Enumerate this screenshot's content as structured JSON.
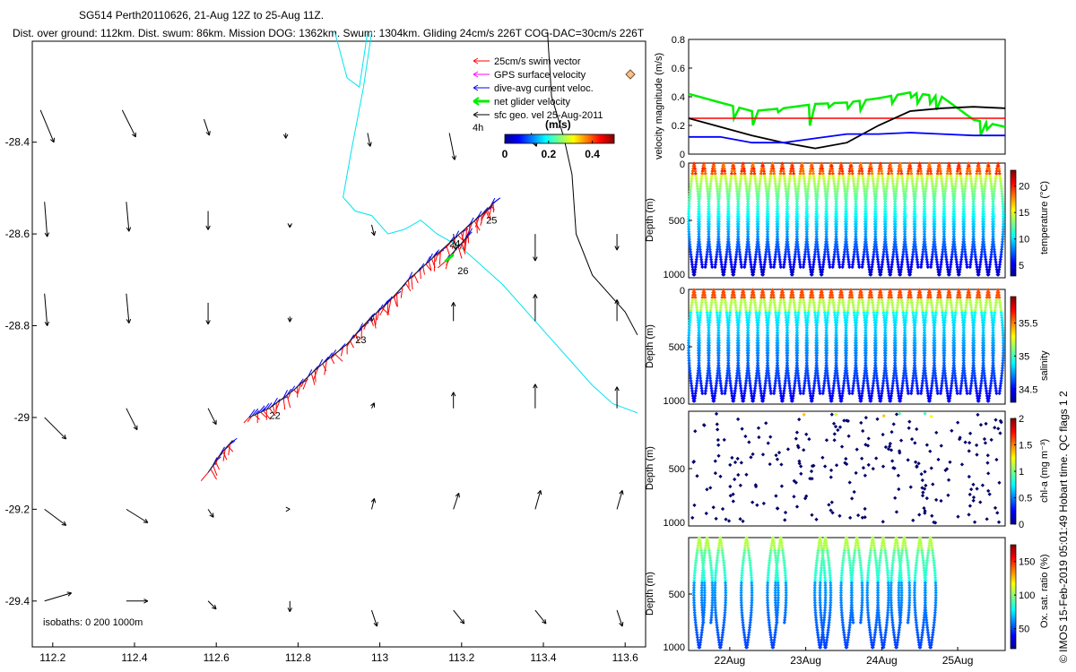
{
  "header": {
    "title": "SG514 Perth20110626, 21-Aug 12Z to 25-Aug 11Z.",
    "summary": "Dist. over ground: 112km. Dist. swum: 86km. Mission DOG: 1362km. Swum: 1304km. Gliding 24cm/s 226T COG-DAC=30cm/s 226T"
  },
  "colors": {
    "swim": "#ff0000",
    "gps": "#ff00ff",
    "dac": "#0000ff",
    "net": "#00ee00",
    "geo": "#000000",
    "isobath": "#00e5ee"
  },
  "chart_data": [
    {
      "type": "map",
      "name": "track-map",
      "xlim": [
        112.15,
        113.65
      ],
      "ylim": [
        -29.5,
        -28.18
      ],
      "xticks": [
        "112.2",
        "112.4",
        "112.6",
        "112.8",
        "113",
        "113.2",
        "113.4",
        "113.6"
      ],
      "xtick_values": [
        112.2,
        112.4,
        112.6,
        112.8,
        113.0,
        113.2,
        113.4,
        113.6
      ],
      "yticks": [
        "-28.4",
        "-28.6",
        "-28.8",
        "-29",
        "-29.2",
        "-29.4"
      ],
      "ytick_values": [
        -28.4,
        -28.6,
        -28.8,
        -29.0,
        -29.2,
        -29.4
      ],
      "legend": [
        {
          "label": "25cm/s swim vector",
          "color": "#ff0000"
        },
        {
          "label": "GPS surface velocity",
          "color": "#ff00ff"
        },
        {
          "label": "dive-avg current veloc.",
          "color": "#0000ff"
        },
        {
          "label": "net glider velocity",
          "color": "#00ee00"
        },
        {
          "label": "sfc geo. vel 25-Aug-2011",
          "color": "#000000"
        }
      ],
      "colorbar": {
        "title": "(m/s)",
        "ticks": [
          "0",
          "0.2",
          "0.4"
        ],
        "tick_values": [
          0,
          0.2,
          0.4
        ],
        "range": [
          0,
          0.5
        ]
      },
      "time_label": "4h",
      "day_labels": [
        {
          "label": "22",
          "lon": 112.73,
          "lat": -28.995
        },
        {
          "label": "23",
          "lon": 112.94,
          "lat": -28.83
        },
        {
          "label": "24",
          "lon": 113.17,
          "lat": -28.62
        },
        {
          "label": "25",
          "lon": 113.26,
          "lat": -28.57
        },
        {
          "label": "26",
          "lon": 113.19,
          "lat": -28.68
        }
      ],
      "isobath_label": "isobaths: 0   200  1000m",
      "track": [
        [
          112.58,
          -29.12
        ],
        [
          112.61,
          -29.08
        ],
        [
          112.64,
          -29.05
        ],
        [
          112.68,
          -29.0
        ],
        [
          112.73,
          -28.98
        ],
        [
          112.79,
          -28.94
        ],
        [
          112.85,
          -28.89
        ],
        [
          112.92,
          -28.84
        ],
        [
          112.97,
          -28.79
        ],
        [
          113.02,
          -28.75
        ],
        [
          113.07,
          -28.7
        ],
        [
          113.12,
          -28.66
        ],
        [
          113.17,
          -28.62
        ],
        [
          113.22,
          -28.58
        ],
        [
          113.26,
          -28.55
        ],
        [
          113.28,
          -28.53
        ]
      ],
      "short_track": [
        [
          113.16,
          -28.66
        ],
        [
          113.2,
          -28.62
        ],
        [
          113.22,
          -28.6
        ]
      ],
      "isobaths": [
        [
          [
            112.89,
            -28.16
          ],
          [
            112.92,
            -28.26
          ],
          [
            112.95,
            -28.28
          ],
          [
            112.96,
            -28.22
          ],
          [
            112.97,
            -28.16
          ]
        ],
        [
          [
            112.98,
            -28.16
          ],
          [
            112.96,
            -28.28
          ],
          [
            112.93,
            -28.42
          ],
          [
            112.91,
            -28.52
          ],
          [
            112.94,
            -28.55
          ],
          [
            112.98,
            -28.56
          ],
          [
            113.02,
            -28.6
          ],
          [
            113.06,
            -28.59
          ],
          [
            113.1,
            -28.57
          ],
          [
            113.14,
            -28.6
          ],
          [
            113.2,
            -28.63
          ],
          [
            113.25,
            -28.67
          ],
          [
            113.3,
            -28.71
          ],
          [
            113.36,
            -28.77
          ],
          [
            113.42,
            -28.83
          ],
          [
            113.47,
            -28.88
          ],
          [
            113.52,
            -28.93
          ],
          [
            113.57,
            -28.97
          ],
          [
            113.63,
            -28.99
          ]
        ]
      ],
      "contour": [
        [
          113.41,
          -28.16
        ],
        [
          113.42,
          -28.3
        ],
        [
          113.45,
          -28.39
        ],
        [
          113.47,
          -28.47
        ],
        [
          113.48,
          -28.6
        ],
        [
          113.52,
          -28.69
        ],
        [
          113.57,
          -28.74
        ],
        [
          113.6,
          -28.77
        ],
        [
          113.63,
          -28.82
        ]
      ],
      "geo_vectors": [
        {
          "lon": 112.17,
          "lat": -28.33,
          "u": 0.05,
          "v": -0.12
        },
        {
          "lon": 112.37,
          "lat": -28.33,
          "u": 0.05,
          "v": -0.1
        },
        {
          "lon": 112.57,
          "lat": -28.35,
          "u": 0.02,
          "v": -0.06
        },
        {
          "lon": 112.77,
          "lat": -28.38,
          "u": 0.0,
          "v": -0.02
        },
        {
          "lon": 112.97,
          "lat": -28.38,
          "u": 0.01,
          "v": -0.05
        },
        {
          "lon": 113.17,
          "lat": -28.38,
          "u": 0.02,
          "v": -0.1
        },
        {
          "lon": 113.37,
          "lat": -28.38,
          "u": 0.02,
          "v": -0.05
        },
        {
          "lon": 112.18,
          "lat": -28.53,
          "u": 0.01,
          "v": -0.13
        },
        {
          "lon": 112.38,
          "lat": -28.53,
          "u": 0.01,
          "v": -0.11
        },
        {
          "lon": 112.58,
          "lat": -28.55,
          "u": 0.0,
          "v": -0.07
        },
        {
          "lon": 112.78,
          "lat": -28.58,
          "u": 0.0,
          "v": -0.01
        },
        {
          "lon": 112.98,
          "lat": -28.58,
          "u": 0.01,
          "v": -0.04
        },
        {
          "lon": 113.18,
          "lat": -28.6,
          "u": 0.01,
          "v": -0.06
        },
        {
          "lon": 113.38,
          "lat": -28.6,
          "u": 0.0,
          "v": -0.1
        },
        {
          "lon": 113.58,
          "lat": -28.6,
          "u": 0.0,
          "v": -0.06
        },
        {
          "lon": 112.18,
          "lat": -28.73,
          "u": 0.01,
          "v": -0.12
        },
        {
          "lon": 112.38,
          "lat": -28.73,
          "u": 0.01,
          "v": -0.11
        },
        {
          "lon": 112.58,
          "lat": -28.75,
          "u": 0.0,
          "v": -0.08
        },
        {
          "lon": 112.78,
          "lat": -28.78,
          "u": 0.0,
          "v": -0.02
        },
        {
          "lon": 112.98,
          "lat": -28.78,
          "u": 0.0,
          "v": -0.02
        },
        {
          "lon": 113.18,
          "lat": -28.79,
          "u": 0.0,
          "v": 0.07
        },
        {
          "lon": 113.38,
          "lat": -28.79,
          "u": 0.0,
          "v": 0.1
        },
        {
          "lon": 113.58,
          "lat": -28.79,
          "u": 0.0,
          "v": 0.08
        },
        {
          "lon": 112.18,
          "lat": -29.0,
          "u": 0.08,
          "v": -0.08
        },
        {
          "lon": 112.38,
          "lat": -28.98,
          "u": 0.04,
          "v": -0.08
        },
        {
          "lon": 112.58,
          "lat": -28.98,
          "u": 0.03,
          "v": -0.06
        },
        {
          "lon": 112.98,
          "lat": -28.98,
          "u": 0.01,
          "v": 0.02
        },
        {
          "lon": 113.18,
          "lat": -28.98,
          "u": 0.0,
          "v": 0.06
        },
        {
          "lon": 113.38,
          "lat": -28.98,
          "u": 0.0,
          "v": 0.09
        },
        {
          "lon": 113.58,
          "lat": -28.98,
          "u": 0.0,
          "v": 0.08
        },
        {
          "lon": 112.18,
          "lat": -29.2,
          "u": 0.08,
          "v": -0.06
        },
        {
          "lon": 112.38,
          "lat": -29.2,
          "u": 0.08,
          "v": -0.05
        },
        {
          "lon": 112.58,
          "lat": -29.2,
          "u": 0.02,
          "v": -0.03
        },
        {
          "lon": 112.78,
          "lat": -29.2,
          "u": 0.0,
          "v": 0.0
        },
        {
          "lon": 112.98,
          "lat": -29.2,
          "u": 0.01,
          "v": 0.04
        },
        {
          "lon": 113.18,
          "lat": -29.2,
          "u": 0.02,
          "v": 0.06
        },
        {
          "lon": 113.38,
          "lat": -29.2,
          "u": 0.02,
          "v": 0.07
        },
        {
          "lon": 113.58,
          "lat": -29.2,
          "u": 0.02,
          "v": 0.07
        },
        {
          "lon": 112.18,
          "lat": -29.4,
          "u": 0.1,
          "v": 0.03
        },
        {
          "lon": 112.38,
          "lat": -29.4,
          "u": 0.08,
          "v": 0.0
        },
        {
          "lon": 112.58,
          "lat": -29.4,
          "u": 0.03,
          "v": -0.03
        },
        {
          "lon": 112.78,
          "lat": -29.4,
          "u": 0.0,
          "v": -0.04
        },
        {
          "lon": 112.98,
          "lat": -29.42,
          "u": 0.02,
          "v": -0.06
        },
        {
          "lon": 113.18,
          "lat": -29.42,
          "u": 0.04,
          "v": -0.05
        },
        {
          "lon": 113.38,
          "lat": -29.42,
          "u": 0.04,
          "v": -0.05
        },
        {
          "lon": 113.58,
          "lat": -29.42,
          "u": 0.02,
          "v": -0.06
        }
      ]
    },
    {
      "type": "line",
      "name": "velocity-magnitude",
      "ylabel": "velocity magnitude (m/s)",
      "ylim": [
        0,
        0.8
      ],
      "yticks": [
        "0",
        "0.2",
        "0.4",
        "0.6",
        "0.8"
      ],
      "ytick_values": [
        0,
        0.2,
        0.4,
        0.6,
        0.8
      ],
      "x": [
        0,
        0.1,
        0.2,
        0.3,
        0.4,
        0.5,
        0.6,
        0.7,
        0.8,
        0.9,
        1.0
      ],
      "series": [
        {
          "name": "net glider velocity",
          "color": "#00ee00",
          "values": [
            0.42,
            0.36,
            0.3,
            0.32,
            0.35,
            0.36,
            0.39,
            0.43,
            0.4,
            0.24,
            0.19
          ]
        },
        {
          "name": "swim",
          "color": "#ff0000",
          "values": [
            0.25,
            0.25,
            0.25,
            0.25,
            0.25,
            0.25,
            0.25,
            0.25,
            0.25,
            0.25,
            0.25
          ]
        },
        {
          "name": "geo",
          "color": "#000000",
          "values": [
            0.25,
            0.19,
            0.13,
            0.08,
            0.04,
            0.08,
            0.2,
            0.3,
            0.32,
            0.33,
            0.32
          ]
        },
        {
          "name": "dive-avg current",
          "color": "#0000ff",
          "values": [
            0.12,
            0.12,
            0.08,
            0.08,
            0.11,
            0.14,
            0.14,
            0.15,
            0.14,
            0.13,
            0.13
          ]
        }
      ]
    },
    {
      "type": "scatter",
      "name": "temperature-section",
      "ylabel": "Depth (m)",
      "ylim": [
        1000,
        0
      ],
      "yticks": [
        "0",
        "500",
        "1000"
      ],
      "colorbar_label": "temperature (°C)",
      "colorbar_ticks": [
        "5",
        "10",
        "15",
        "20"
      ],
      "colorbar_tick_values": [
        5,
        10,
        15,
        20
      ],
      "crange": [
        3,
        23
      ],
      "dives": 32
    },
    {
      "type": "scatter",
      "name": "salinity-section",
      "ylabel": "Depth (m)",
      "ylim": [
        1000,
        0
      ],
      "yticks": [
        "0",
        "500",
        "1000"
      ],
      "colorbar_label": "salinity",
      "colorbar_ticks": [
        "34.5",
        "35",
        "35.5"
      ],
      "colorbar_tick_values": [
        34.5,
        35,
        35.5
      ],
      "crange": [
        34.3,
        35.9
      ],
      "dives": 32
    },
    {
      "type": "scatter",
      "name": "chla-section",
      "ylabel": "Depth (m)",
      "ylim": [
        1000,
        0
      ],
      "yticks": [
        "500",
        "1000"
      ],
      "colorbar_label": "chl-a (mg m⁻³)",
      "colorbar_ticks": [
        "0",
        "0.5",
        "1",
        "1.5",
        "2"
      ],
      "colorbar_tick_values": [
        0,
        0.5,
        1,
        1.5,
        2
      ],
      "crange": [
        0,
        2
      ],
      "dives": 32
    },
    {
      "type": "scatter",
      "name": "oxygen-section",
      "ylabel": "Depth (m)",
      "ylim": [
        1000,
        0
      ],
      "yticks": [
        "500",
        "1000"
      ],
      "colorbar_label": "Ox. sat. ratio (%)",
      "colorbar_ticks": [
        "50",
        "100",
        "150"
      ],
      "colorbar_tick_values": [
        50,
        100,
        150
      ],
      "crange": [
        20,
        175
      ],
      "dives": 16,
      "xticks": [
        "22Aug",
        "23Aug",
        "24Aug",
        "25Aug"
      ],
      "xtick_values": [
        0.13,
        0.37,
        0.61,
        0.85
      ]
    }
  ],
  "footer": {
    "credit": "© IMOS 15-Feb-2019 05:01:49 Hobart time. QC flags 1  2"
  }
}
